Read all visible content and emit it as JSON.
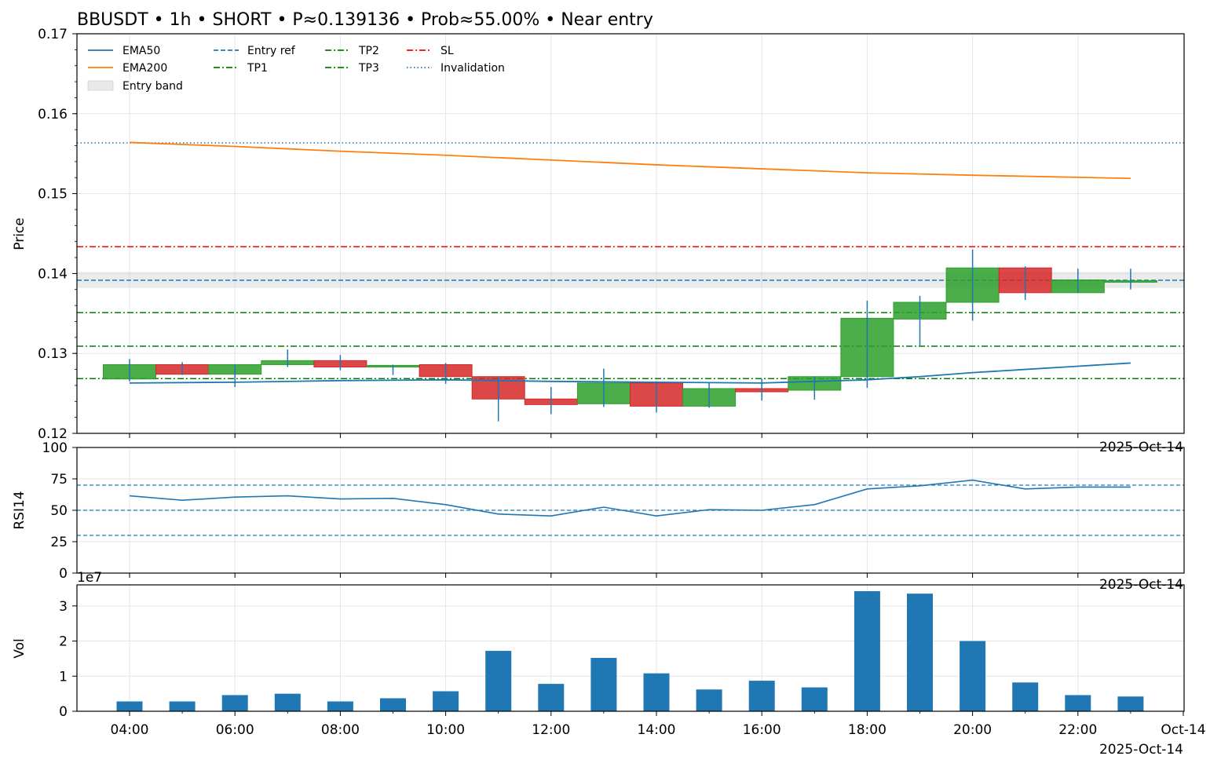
{
  "title": "BBUSDT • 1h • SHORT • P≈0.139136 • Prob≈55.00% • Near entry",
  "date_label": "2025-Oct-14",
  "chart_data": [
    {
      "type": "candlestick",
      "ylabel": "Price",
      "ylim": [
        0.12,
        0.17
      ],
      "yticks": [
        "0.12",
        "0.13",
        "0.14",
        "0.15",
        "0.16",
        "0.17"
      ],
      "grid": true,
      "legend_position": "top-left",
      "x_hours": [
        4,
        5,
        6,
        7,
        8,
        9,
        10,
        11,
        12,
        13,
        14,
        15,
        16,
        17,
        18,
        19,
        20,
        21,
        22,
        23
      ],
      "candles": [
        {
          "hour": 4,
          "open": 0.1268,
          "high": 0.1293,
          "low": 0.1265,
          "close": 0.1286
        },
        {
          "hour": 5,
          "open": 0.1286,
          "high": 0.1289,
          "low": 0.1273,
          "close": 0.1274
        },
        {
          "hour": 6,
          "open": 0.1274,
          "high": 0.1286,
          "low": 0.1258,
          "close": 0.1286
        },
        {
          "hour": 7,
          "open": 0.1286,
          "high": 0.1305,
          "low": 0.1283,
          "close": 0.1291
        },
        {
          "hour": 8,
          "open": 0.1291,
          "high": 0.1298,
          "low": 0.1279,
          "close": 0.1283
        },
        {
          "hour": 9,
          "open": 0.1283,
          "high": 0.1286,
          "low": 0.1273,
          "close": 0.1285
        },
        {
          "hour": 10,
          "open": 0.1286,
          "high": 0.1288,
          "low": 0.1262,
          "close": 0.1271
        },
        {
          "hour": 11,
          "open": 0.1271,
          "high": 0.1271,
          "low": 0.1215,
          "close": 0.1243
        },
        {
          "hour": 12,
          "open": 0.1243,
          "high": 0.1258,
          "low": 0.1224,
          "close": 0.1236
        },
        {
          "hour": 13,
          "open": 0.1237,
          "high": 0.1281,
          "low": 0.1233,
          "close": 0.1263
        },
        {
          "hour": 14,
          "open": 0.1263,
          "high": 0.1263,
          "low": 0.1226,
          "close": 0.1234
        },
        {
          "hour": 15,
          "open": 0.1234,
          "high": 0.1263,
          "low": 0.1232,
          "close": 0.1256
        },
        {
          "hour": 16,
          "open": 0.1256,
          "high": 0.1268,
          "low": 0.1241,
          "close": 0.1252
        },
        {
          "hour": 17,
          "open": 0.1254,
          "high": 0.1271,
          "low": 0.1242,
          "close": 0.1271
        },
        {
          "hour": 18,
          "open": 0.1271,
          "high": 0.1366,
          "low": 0.1257,
          "close": 0.1344
        },
        {
          "hour": 19,
          "open": 0.1343,
          "high": 0.1372,
          "low": 0.131,
          "close": 0.1364
        },
        {
          "hour": 20,
          "open": 0.1364,
          "high": 0.143,
          "low": 0.1341,
          "close": 0.1407
        },
        {
          "hour": 21,
          "open": 0.1407,
          "high": 0.1409,
          "low": 0.1367,
          "close": 0.1376
        },
        {
          "hour": 22,
          "open": 0.1376,
          "high": 0.1406,
          "low": 0.1376,
          "close": 0.1392
        },
        {
          "hour": 23,
          "open": 0.1391,
          "high": 0.1406,
          "low": 0.138,
          "close": 0.1391
        }
      ],
      "series": [
        {
          "name": "EMA50",
          "color": "#1f77b4",
          "x": [
            4,
            6,
            8,
            10,
            12,
            14,
            16,
            17,
            18,
            19,
            20,
            21,
            22,
            23
          ],
          "values": [
            0.1263,
            0.1264,
            0.1266,
            0.1267,
            0.1265,
            0.1264,
            0.1263,
            0.1265,
            0.1267,
            0.1271,
            0.1276,
            0.128,
            0.1284,
            0.1288
          ]
        },
        {
          "name": "EMA200",
          "color": "#ff7f0e",
          "x": [
            4,
            6,
            8,
            10,
            12,
            14,
            16,
            18,
            20,
            23
          ],
          "values": [
            0.1564,
            0.1559,
            0.1553,
            0.1548,
            0.1542,
            0.1536,
            0.1531,
            0.1526,
            0.1523,
            0.1519
          ]
        }
      ],
      "levels": [
        {
          "name": "Entry ref",
          "value": 0.13915,
          "color": "#1f77b4",
          "style": "dashed"
        },
        {
          "name": "TP1",
          "value": 0.12685,
          "color": "#008000",
          "style": "dashdot"
        },
        {
          "name": "TP2",
          "value": 0.1351,
          "color": "#008000",
          "style": "dashdot"
        },
        {
          "name": "TP3",
          "value": 0.1309,
          "color": "#008000",
          "style": "dashdot"
        },
        {
          "name": "SL",
          "value": 0.14335,
          "color": "#ff0000",
          "style": "dashdot"
        },
        {
          "name": "Invalidation",
          "value": 0.15635,
          "color": "#1f77b4",
          "style": "dotted"
        }
      ],
      "entry_band": {
        "name": "Entry band",
        "low": 0.1382,
        "high": 0.1402,
        "color": "#d3d3d3"
      },
      "colors": {
        "up": "#2ca02c",
        "down": "#d62728",
        "wick": "#1f77b4"
      }
    },
    {
      "type": "line",
      "ylabel": "RSI14",
      "ylim": [
        0,
        100
      ],
      "yticks": [
        "0",
        "25",
        "50",
        "75",
        "100"
      ],
      "grid": true,
      "x_hours": [
        4,
        5,
        6,
        7,
        8,
        9,
        10,
        11,
        12,
        13,
        14,
        15,
        16,
        17,
        18,
        19,
        20,
        21,
        22,
        23
      ],
      "series": [
        {
          "color": "#1f77b4",
          "values": [
            61.5,
            58,
            60.5,
            61.5,
            59,
            59.5,
            54.5,
            47,
            45.5,
            52.5,
            45.5,
            50.5,
            50,
            54.5,
            67,
            69.5,
            74,
            67,
            68.5,
            68.5
          ]
        }
      ],
      "reference_lines": [
        30,
        50,
        70
      ]
    },
    {
      "type": "bar",
      "ylabel": "Vol",
      "scale_note": "1e7",
      "ylim": [
        0,
        3.6
      ],
      "yticks": [
        "0",
        "1",
        "2",
        "3"
      ],
      "grid": true,
      "x_hours": [
        4,
        5,
        6,
        7,
        8,
        9,
        10,
        11,
        12,
        13,
        14,
        15,
        16,
        17,
        18,
        19,
        20,
        21,
        22,
        23
      ],
      "values": [
        0.28,
        0.28,
        0.46,
        0.5,
        0.28,
        0.37,
        0.57,
        1.72,
        0.78,
        1.52,
        1.08,
        0.62,
        0.87,
        0.68,
        3.42,
        3.35,
        2.0,
        0.82,
        0.46,
        0.42
      ],
      "color": "#1f77b4",
      "xticks": [
        "04:00",
        "06:00",
        "08:00",
        "10:00",
        "12:00",
        "14:00",
        "16:00",
        "18:00",
        "20:00",
        "22:00",
        "Oct-14"
      ]
    }
  ]
}
